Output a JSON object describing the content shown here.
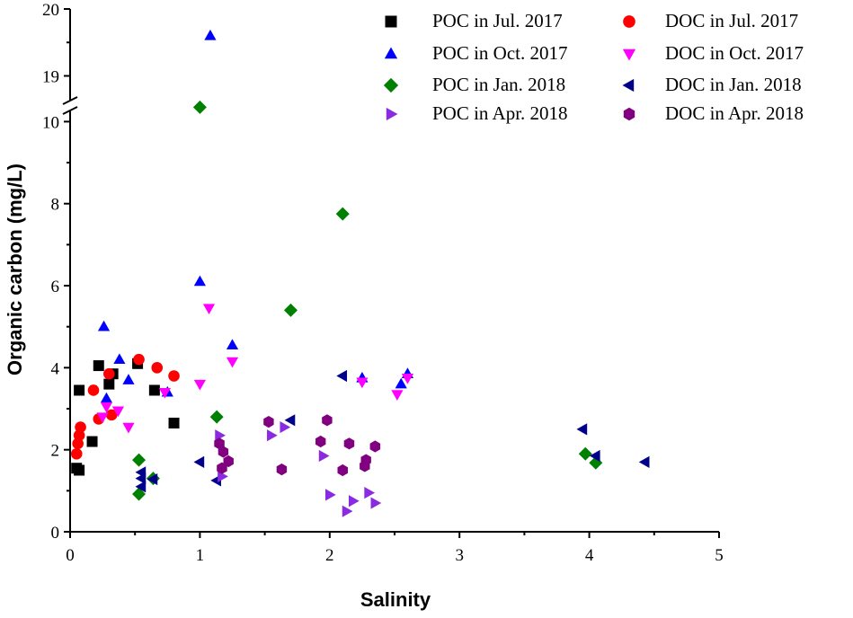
{
  "chart_data": {
    "type": "scatter",
    "xlabel": "Salinity",
    "ylabel": "Organic carbon (mg/L)",
    "xlim": [
      0,
      5
    ],
    "ylim_lower": [
      0,
      10.6
    ],
    "ylim_upper": [
      18.55,
      20
    ],
    "axis_break_y": true,
    "x_ticks": [
      0,
      1,
      2,
      3,
      4,
      5
    ],
    "y_ticks_lower": [
      0,
      2,
      4,
      6,
      8,
      10
    ],
    "y_ticks_upper": [
      19,
      20
    ],
    "legend_position": "top-right",
    "series": [
      {
        "name": "POC in Jul. 2017",
        "marker": "square",
        "color": "#000000",
        "points": [
          [
            0.05,
            1.55
          ],
          [
            0.07,
            1.5
          ],
          [
            0.07,
            3.45
          ],
          [
            0.17,
            2.2
          ],
          [
            0.22,
            4.05
          ],
          [
            0.3,
            3.6
          ],
          [
            0.33,
            3.85
          ],
          [
            0.52,
            4.1
          ],
          [
            0.65,
            3.45
          ],
          [
            0.8,
            2.65
          ]
        ]
      },
      {
        "name": "DOC in Jul. 2017",
        "marker": "circle",
        "color": "#ff0000",
        "points": [
          [
            0.05,
            1.9
          ],
          [
            0.06,
            2.15
          ],
          [
            0.07,
            2.35
          ],
          [
            0.08,
            2.55
          ],
          [
            0.18,
            3.45
          ],
          [
            0.22,
            2.75
          ],
          [
            0.3,
            3.85
          ],
          [
            0.32,
            2.85
          ],
          [
            0.53,
            4.2
          ],
          [
            0.67,
            4.0
          ],
          [
            0.8,
            3.8
          ]
        ]
      },
      {
        "name": "POC in Oct. 2017",
        "marker": "triangle-up",
        "color": "#0000ff",
        "points": [
          [
            0.26,
            5.0
          ],
          [
            0.28,
            3.25
          ],
          [
            0.38,
            4.2
          ],
          [
            0.45,
            3.7
          ],
          [
            0.75,
            3.4
          ],
          [
            1.0,
            6.1
          ],
          [
            1.08,
            19.6
          ],
          [
            1.25,
            4.55
          ],
          [
            2.25,
            3.75
          ],
          [
            2.55,
            3.6
          ],
          [
            2.6,
            3.85
          ]
        ]
      },
      {
        "name": "DOC in Oct. 2017",
        "marker": "triangle-down",
        "color": "#ff00ff",
        "points": [
          [
            0.25,
            2.8
          ],
          [
            0.28,
            3.05
          ],
          [
            0.37,
            2.95
          ],
          [
            0.45,
            2.55
          ],
          [
            0.73,
            3.4
          ],
          [
            1.0,
            3.6
          ],
          [
            1.07,
            5.45
          ],
          [
            1.25,
            4.15
          ],
          [
            2.25,
            3.65
          ],
          [
            2.52,
            3.35
          ],
          [
            2.6,
            3.75
          ]
        ]
      },
      {
        "name": "POC in Jan. 2018",
        "marker": "diamond",
        "color": "#008000",
        "points": [
          [
            0.53,
            1.75
          ],
          [
            0.53,
            0.92
          ],
          [
            0.64,
            1.3
          ],
          [
            1.0,
            10.35
          ],
          [
            1.13,
            2.8
          ],
          [
            1.7,
            5.4
          ],
          [
            2.1,
            7.75
          ],
          [
            3.97,
            1.9
          ],
          [
            4.05,
            1.68
          ]
        ]
      },
      {
        "name": "DOC in Jan. 2018",
        "marker": "triangle-left",
        "color": "#00008b",
        "points": [
          [
            0.55,
            1.45
          ],
          [
            0.55,
            1.3
          ],
          [
            0.55,
            1.1
          ],
          [
            0.64,
            1.28
          ],
          [
            1.0,
            1.7
          ],
          [
            1.13,
            1.25
          ],
          [
            1.7,
            2.72
          ],
          [
            2.1,
            3.8
          ],
          [
            3.95,
            2.5
          ],
          [
            4.05,
            1.85
          ],
          [
            4.43,
            1.7
          ]
        ]
      },
      {
        "name": "POC in Apr. 2018",
        "marker": "triangle-right",
        "color": "#8a2be2",
        "points": [
          [
            1.15,
            2.35
          ],
          [
            1.17,
            1.35
          ],
          [
            1.55,
            2.35
          ],
          [
            1.65,
            2.55
          ],
          [
            1.95,
            1.85
          ],
          [
            2.0,
            0.9
          ],
          [
            2.13,
            0.5
          ],
          [
            2.18,
            0.75
          ],
          [
            2.3,
            0.95
          ],
          [
            2.35,
            0.7
          ]
        ]
      },
      {
        "name": "DOC in Apr. 2018",
        "marker": "hexagon",
        "color": "#800080",
        "points": [
          [
            1.15,
            2.15
          ],
          [
            1.17,
            1.55
          ],
          [
            1.18,
            1.95
          ],
          [
            1.22,
            1.72
          ],
          [
            1.53,
            2.68
          ],
          [
            1.63,
            1.52
          ],
          [
            1.93,
            2.2
          ],
          [
            1.98,
            2.72
          ],
          [
            2.1,
            1.5
          ],
          [
            2.15,
            2.15
          ],
          [
            2.27,
            1.6
          ],
          [
            2.28,
            1.75
          ],
          [
            2.35,
            2.08
          ]
        ]
      }
    ]
  }
}
